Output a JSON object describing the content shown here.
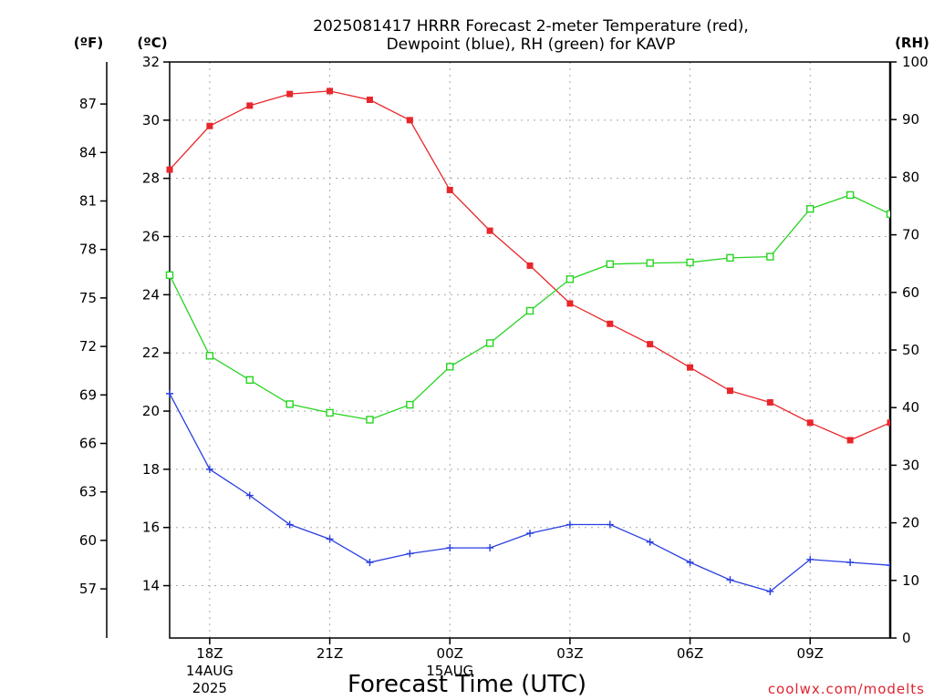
{
  "chart_data": {
    "type": "line",
    "title_lines": [
      "2025081417 HRRR Forecast 2-meter Temperature (red),",
      "Dewpoint (blue), RH (green) for KAVP"
    ],
    "xlabel": "Forecast Time (UTC)",
    "credit": "coolwx.com/modelts",
    "unit_labels": {
      "fahrenheit": "(ºF)",
      "celsius": "(ºC)",
      "rh": "(RH)"
    },
    "x_hours": [
      17,
      18,
      19,
      20,
      21,
      22,
      23,
      24,
      25,
      26,
      27,
      28,
      29,
      30,
      31,
      32,
      33,
      34,
      35
    ],
    "x_range": [
      17,
      35
    ],
    "x_ticks": [
      {
        "x": 18,
        "label": "18Z",
        "sub1": "14AUG",
        "sub2": "2025"
      },
      {
        "x": 21,
        "label": "21Z"
      },
      {
        "x": 24,
        "label": "00Z",
        "sub1": "15AUG"
      },
      {
        "x": 27,
        "label": "03Z"
      },
      {
        "x": 30,
        "label": "06Z"
      },
      {
        "x": 33,
        "label": "09Z"
      }
    ],
    "celsius_axis": {
      "range": [
        12.2,
        32
      ],
      "ticks": [
        14,
        16,
        18,
        20,
        22,
        24,
        26,
        28,
        30,
        32
      ]
    },
    "fahrenheit_ticks": [
      57,
      60,
      63,
      66,
      69,
      72,
      75,
      78,
      81,
      84,
      87
    ],
    "rh_axis": {
      "range": [
        0,
        100
      ],
      "ticks": [
        0,
        10,
        20,
        30,
        40,
        50,
        60,
        70,
        80,
        90,
        100
      ]
    },
    "grid": true,
    "series": [
      {
        "key": "temperature",
        "axis": "celsius",
        "color": "#e8262b",
        "marker": "filled-square",
        "values": [
          28.3,
          29.8,
          30.5,
          30.9,
          31.0,
          30.7,
          30.0,
          27.6,
          26.2,
          25.0,
          23.7,
          23.0,
          22.3,
          21.5,
          20.7,
          20.3,
          19.6,
          19.0,
          19.6
        ]
      },
      {
        "key": "dewpoint",
        "axis": "celsius",
        "color": "#2a3fe0",
        "marker": "plus",
        "values": [
          20.6,
          18.0,
          17.1,
          16.1,
          15.6,
          14.8,
          15.1,
          15.3,
          15.3,
          15.8,
          16.1,
          16.1,
          15.5,
          14.8,
          14.2,
          13.8,
          14.9,
          14.8,
          14.7
        ]
      },
      {
        "key": "rh",
        "axis": "rh",
        "color": "#27d422",
        "marker": "open-square",
        "values": [
          63.0,
          49.0,
          44.8,
          40.6,
          39.1,
          37.9,
          40.5,
          47.1,
          51.2,
          56.8,
          62.3,
          64.9,
          65.1,
          65.2,
          66.0,
          66.2,
          74.5,
          76.9,
          73.6
        ]
      }
    ]
  }
}
